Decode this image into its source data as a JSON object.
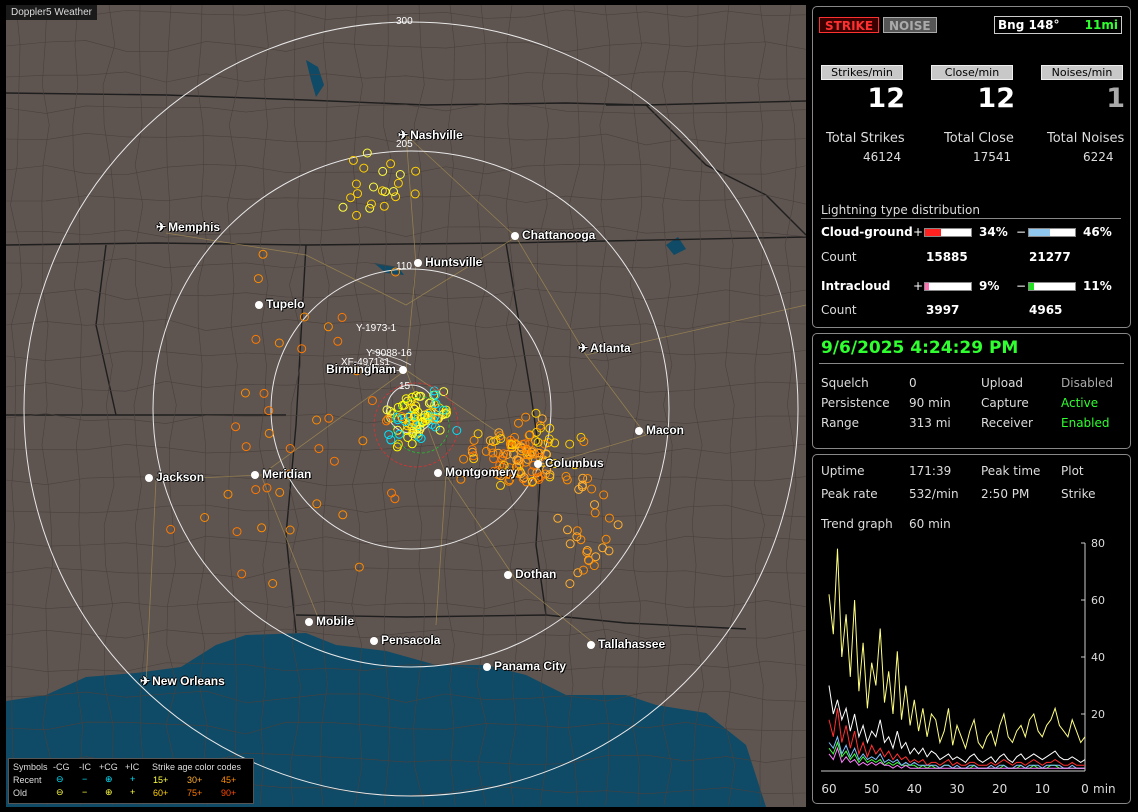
{
  "app": {
    "title": "Doppler5 Weather"
  },
  "map": {
    "range_labels": [
      "300",
      "205",
      "110",
      "15"
    ],
    "cities": [
      {
        "name": "Nashville",
        "icon": "airport-icon"
      },
      {
        "name": "Memphis",
        "icon": "airport-icon"
      },
      {
        "name": "Chattanooga",
        "icon": "city-dot-icon"
      },
      {
        "name": "Huntsville",
        "icon": "city-dot-icon"
      },
      {
        "name": "Tupelo",
        "icon": "city-dot-icon"
      },
      {
        "name": "Atlanta",
        "icon": "airport-icon"
      },
      {
        "name": "Birmingham",
        "icon": "city-dot-icon"
      },
      {
        "name": "Macon",
        "icon": "city-dot-icon"
      },
      {
        "name": "Columbus",
        "icon": "city-dot-icon"
      },
      {
        "name": "Montgomery",
        "icon": "city-dot-icon"
      },
      {
        "name": "Jackson",
        "icon": "city-dot-icon"
      },
      {
        "name": "Meridian",
        "icon": "city-dot-icon"
      },
      {
        "name": "Dothan",
        "icon": "city-dot-icon"
      },
      {
        "name": "Mobile",
        "icon": "city-dot-icon"
      },
      {
        "name": "Pensacola",
        "icon": "city-dot-icon"
      },
      {
        "name": "Tallahassee",
        "icon": "city-dot-icon"
      },
      {
        "name": "Panama City",
        "icon": "city-dot-icon"
      },
      {
        "name": "New Orleans",
        "icon": "airport-icon"
      }
    ],
    "track_labels": [
      "Y-1973-1",
      "XF-4971s1",
      "Y-9088-16"
    ],
    "colors": {
      "land": "#5e5450",
      "water": "#0f4a66",
      "strike_old": "#ff8c00",
      "strike_recent": "#ffff00",
      "strike_close": "#00e5ff"
    }
  },
  "legend": {
    "symbols_label": "Symbols",
    "cols": [
      "-CG",
      "-IC",
      "+CG",
      "+IC"
    ],
    "age_label": "Strike age color codes",
    "recent_label": "Recent",
    "old_label": "Old",
    "recent_ages": [
      "15+",
      "30+",
      "45+"
    ],
    "old_ages": [
      "60+",
      "75+",
      "90+"
    ],
    "recent_colors": [
      "#ffff40",
      "#ffb030",
      "#ff8c00"
    ],
    "old_colors": [
      "#ffd000",
      "#ff7a00",
      "#ff4a00"
    ]
  },
  "status": {
    "strike_btn": "STRIKE",
    "noise_btn": "NOISE",
    "bearing": "Bng 148°",
    "distance": "11mi",
    "rate_headers": [
      "Strikes/min",
      "Close/min",
      "Noises/min"
    ],
    "rates": [
      "12",
      "12",
      "1"
    ],
    "totals_labels": [
      "Total Strikes",
      "Total Close",
      "Total Noises"
    ],
    "totals": [
      "46124",
      "17541",
      "6224"
    ],
    "dist_title": "Lightning type distribution",
    "cg_label": "Cloud-ground",
    "ic_label": "Intracloud",
    "count_label": "Count",
    "cg_pos_pct": "34%",
    "cg_neg_pct": "46%",
    "cg_pos_count": "15885",
    "cg_neg_count": "21277",
    "ic_pos_pct": "9%",
    "ic_neg_pct": "11%",
    "ic_pos_count": "3997",
    "ic_neg_count": "4965",
    "cg_pos_frac": 0.34,
    "cg_neg_frac": 0.46,
    "ic_pos_frac": 0.09,
    "ic_neg_frac": 0.11,
    "plus": "+",
    "minus": "−"
  },
  "info": {
    "datetime": "9/6/2025 4:24:29 PM",
    "squelch_label": "Squelch",
    "squelch": "0",
    "persistence_label": "Persistence",
    "persistence": "90 min",
    "range_label": "Range",
    "range": "313 mi",
    "upload_label": "Upload",
    "upload": "Disabled",
    "capture_label": "Capture",
    "capture": "Active",
    "receiver_label": "Receiver",
    "receiver": "Enabled"
  },
  "trend": {
    "uptime_label": "Uptime",
    "uptime": "171:39",
    "peak_time_label": "Peak time",
    "peak_time": "2:50 PM",
    "plot_label": "Plot",
    "plot": "Strike",
    "peak_rate_label": "Peak rate",
    "peak_rate": "532/min",
    "trend_label": "Trend graph",
    "trend_window": "60 min"
  },
  "chart_data": {
    "type": "line",
    "x_ticks": [
      "60",
      "50",
      "40",
      "30",
      "20",
      "10",
      "0"
    ],
    "x_unit": "min",
    "y_ticks": [
      "80",
      "60",
      "40",
      "20"
    ],
    "ylim": [
      0,
      80
    ],
    "xlim": [
      60,
      0
    ],
    "series": [
      {
        "color": "#ffff80",
        "values": [
          62,
          48,
          78,
          40,
          55,
          33,
          60,
          28,
          45,
          22,
          38,
          30,
          50,
          24,
          35,
          20,
          42,
          18,
          30,
          16,
          25,
          14,
          22,
          12,
          20,
          18,
          10,
          14,
          22,
          9,
          16,
          12,
          8,
          14,
          18,
          10,
          8,
          12,
          14,
          9,
          16,
          20,
          12,
          10,
          14,
          16,
          12,
          18,
          20,
          14,
          12,
          16,
          18,
          22,
          16,
          14,
          12,
          18,
          14,
          10,
          12
        ]
      },
      {
        "color": "#ffffff",
        "values": [
          30,
          20,
          25,
          18,
          22,
          14,
          20,
          12,
          16,
          10,
          14,
          12,
          18,
          10,
          12,
          8,
          14,
          8,
          10,
          6,
          8,
          6,
          8,
          5,
          7,
          6,
          4,
          5,
          6,
          4,
          5,
          4,
          3,
          5,
          6,
          4,
          3,
          4,
          5,
          3,
          5,
          6,
          4,
          3,
          5,
          6,
          4,
          5,
          6,
          5,
          4,
          5,
          6,
          7,
          5,
          4,
          4,
          5,
          4,
          3,
          4
        ]
      },
      {
        "color": "#ff3030",
        "values": [
          18,
          12,
          22,
          10,
          16,
          8,
          14,
          6,
          10,
          5,
          9,
          6,
          8,
          5,
          7,
          4,
          6,
          4,
          5,
          3,
          4,
          3,
          4,
          2,
          3,
          3,
          2,
          3,
          4,
          2,
          3,
          2,
          2,
          3,
          3,
          2,
          2,
          2,
          3,
          2,
          3,
          4,
          3,
          2,
          3,
          3,
          2,
          3,
          4,
          3,
          2,
          3,
          3,
          4,
          3,
          2,
          2,
          3,
          2,
          2,
          2
        ]
      },
      {
        "color": "#40ff40",
        "values": [
          8,
          6,
          10,
          5,
          7,
          4,
          6,
          3,
          5,
          3,
          4,
          3,
          4,
          2,
          3,
          2,
          3,
          2,
          2,
          2,
          2,
          1,
          2,
          1,
          2,
          1,
          1,
          2,
          2,
          1,
          1,
          1,
          1,
          1,
          2,
          1,
          1,
          1,
          1,
          1,
          1,
          2,
          1,
          1,
          1,
          2,
          1,
          1,
          2,
          1,
          1,
          1,
          2,
          2,
          1,
          1,
          1,
          1,
          1,
          1,
          1
        ]
      },
      {
        "color": "#80c0ff",
        "values": [
          10,
          8,
          12,
          6,
          9,
          5,
          8,
          4,
          6,
          4,
          5,
          4,
          6,
          3,
          4,
          3,
          4,
          2,
          3,
          2,
          3,
          2,
          2,
          2,
          2,
          2,
          1,
          2,
          2,
          1,
          2,
          1,
          1,
          2,
          2,
          1,
          1,
          1,
          2,
          1,
          2,
          2,
          1,
          1,
          2,
          2,
          1,
          2,
          2,
          2,
          1,
          2,
          2,
          2,
          2,
          1,
          1,
          2,
          1,
          1,
          1
        ]
      },
      {
        "color": "#ff80ff",
        "values": [
          6,
          4,
          8,
          3,
          5,
          3,
          4,
          2,
          3,
          2,
          3,
          2,
          3,
          2,
          2,
          1,
          2,
          1,
          2,
          1,
          1,
          1,
          1,
          1,
          1,
          1,
          1,
          1,
          1,
          1,
          1,
          1,
          1,
          1,
          1,
          1,
          1,
          1,
          1,
          1,
          1,
          1,
          1,
          1,
          1,
          1,
          1,
          1,
          1,
          1,
          1,
          1,
          1,
          1,
          1,
          1,
          1,
          1,
          1,
          1,
          1
        ]
      }
    ]
  }
}
